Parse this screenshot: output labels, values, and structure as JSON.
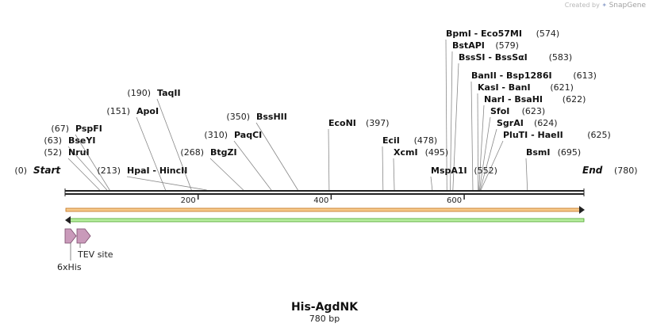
{
  "watermark": {
    "prefix": "Created by",
    "brand": "SnapGene"
  },
  "sequence": {
    "name": "His-AgdNK",
    "length_label": "780 bp",
    "length": 780
  },
  "ends": {
    "start_label": "Start",
    "start_pos": 0,
    "end_label": "End",
    "end_pos": 780
  },
  "ruler_ticks": [
    200,
    400,
    600
  ],
  "sites": [
    {
      "label": "NruI",
      "pos": 52
    },
    {
      "label": "BseYI",
      "pos": 63
    },
    {
      "label": "PspFI",
      "pos": 67
    },
    {
      "label": "ApoI",
      "pos": 151
    },
    {
      "label": "TaqII",
      "pos": 190
    },
    {
      "label": "HpaI  -  HincII",
      "pos": 213
    },
    {
      "label": "BtgZI",
      "pos": 268
    },
    {
      "label": "PaqCI",
      "pos": 310
    },
    {
      "label": "BssHII",
      "pos": 350
    },
    {
      "label": "EcoNI",
      "pos": 397
    },
    {
      "label": "EciI",
      "pos": 478
    },
    {
      "label": "XcmI",
      "pos": 495
    },
    {
      "label": "MspA1I",
      "pos": 552
    },
    {
      "label": "BpmI  -  Eco57MI",
      "pos": 574
    },
    {
      "label": "BstAPI",
      "pos": 579
    },
    {
      "label": "BssSI  -  BssSαI",
      "pos": 583
    },
    {
      "label": "BanII  -  Bsp1286I",
      "pos": 613
    },
    {
      "label": "KasI  -  BanI",
      "pos": 621
    },
    {
      "label": "NarI  -  BsaHI",
      "pos": 622
    },
    {
      "label": "SfoI",
      "pos": 623
    },
    {
      "label": "SgrAI",
      "pos": 624
    },
    {
      "label": "PluTI  -  HaeII",
      "pos": 625
    },
    {
      "label": "BsmI",
      "pos": 695
    }
  ],
  "features": [
    {
      "label": "6xHis",
      "start": 1,
      "end": 18
    },
    {
      "label": "TEV site",
      "start": 19,
      "end": 39
    }
  ],
  "strand_arrows": [
    {
      "direction": "forward",
      "color": "#f0a030"
    },
    {
      "direction": "reverse",
      "color": "#5cc23a"
    }
  ]
}
